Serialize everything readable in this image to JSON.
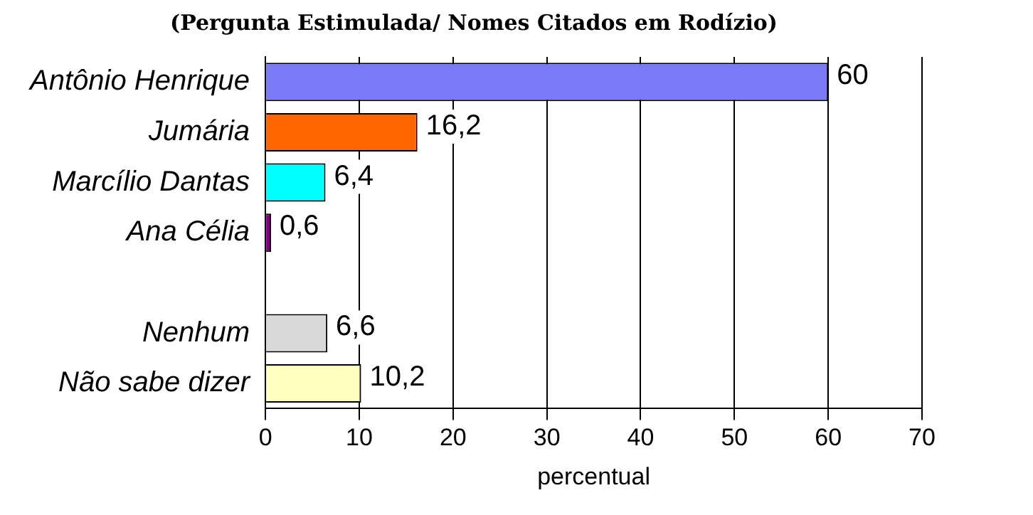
{
  "chart_data": {
    "type": "bar",
    "orientation": "horizontal",
    "title": "(Pergunta Estimulada/ Nomes Citados em Rodízio)",
    "categories": [
      "Antônio Henrique",
      "Jumária",
      "Marcílio Dantas",
      "Ana Célia",
      null,
      "Nenhum",
      "Não sabe dizer"
    ],
    "values": [
      60,
      16.2,
      6.4,
      0.6,
      null,
      6.6,
      10.2
    ],
    "value_labels": [
      "60",
      "16,2",
      "6,4",
      "0,6",
      null,
      "6,6",
      "10,2"
    ],
    "colors": [
      "#7b7bf7",
      "#ff6600",
      "#00ffff",
      "#800080",
      "#808080",
      "#d9d9d9",
      "#ffffc0"
    ],
    "xlim": [
      0,
      70
    ],
    "xticks": [
      0,
      10,
      20,
      30,
      40,
      50,
      60,
      70
    ],
    "xlabel": "percentual",
    "grid": "x",
    "legend": false
  }
}
